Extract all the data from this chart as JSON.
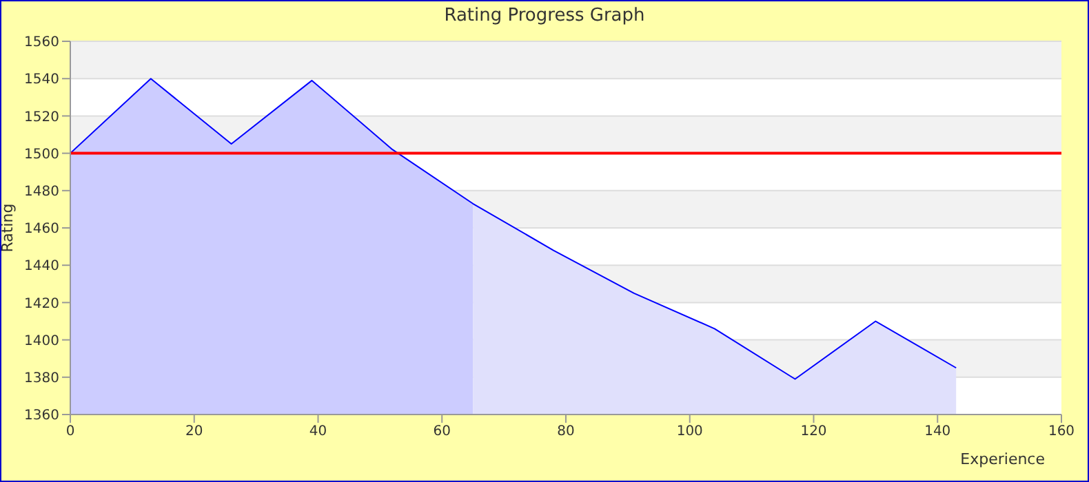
{
  "chart_data": {
    "type": "area",
    "title": "Rating Progress Graph",
    "xlabel": "Experience",
    "ylabel": "Rating",
    "xlim": [
      0,
      160
    ],
    "xticks": [
      0,
      20,
      40,
      60,
      80,
      100,
      120,
      140,
      160
    ],
    "ylim": [
      1360,
      1560
    ],
    "yticks": [
      1360,
      1380,
      1400,
      1420,
      1440,
      1460,
      1480,
      1500,
      1520,
      1540,
      1560
    ],
    "grid": "y",
    "marker": "none",
    "series": [
      {
        "color": "#ccccff",
        "x": [
          0,
          13,
          26,
          39,
          52,
          65
        ],
        "values": [
          1500,
          1540,
          1505,
          1539,
          1502,
          1473
        ]
      },
      {
        "color": "#e0e0fc",
        "x": [
          65,
          78,
          91,
          104,
          117,
          130,
          143
        ],
        "values": [
          1473,
          1448,
          1425,
          1406,
          1379,
          1410,
          1385
        ]
      },
      {
        "type": "line",
        "color": "#0000ff",
        "x": [
          0,
          13,
          26,
          39,
          52,
          65,
          78,
          91,
          104,
          117,
          130,
          143
        ],
        "values": [
          1500,
          1540,
          1505,
          1539,
          1502,
          1473,
          1448,
          1425,
          1406,
          1379,
          1410,
          1385
        ]
      }
    ],
    "ref_lines": [
      {
        "axis": "y",
        "value": 1500,
        "color": "#ff0000"
      }
    ]
  }
}
